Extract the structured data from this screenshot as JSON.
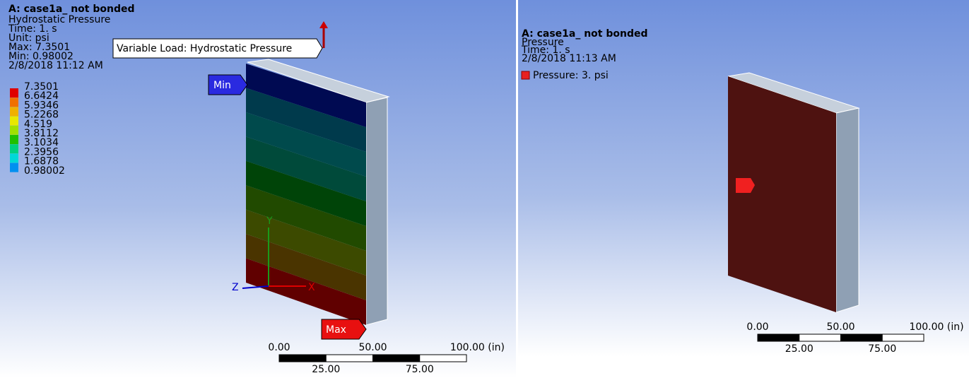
{
  "left_view": {
    "title": "A: case1a_ not bonded",
    "subtitle": "Hydrostatic Pressure",
    "info": [
      "Time: 1. s",
      "Unit: psi",
      "Max: 7.3501",
      "Min: 0.98002",
      "2/8/2018 11:12 AM"
    ],
    "legend": [
      "7.3501",
      "6.6424",
      "5.9346",
      "5.2268",
      "4.519",
      "3.8112",
      "3.1034",
      "2.3956",
      "1.6878",
      "0.98002"
    ],
    "callout": "Variable Load: Hydrostatic Pressure",
    "min_tag": "Min",
    "max_tag": "Max",
    "axes": {
      "y": "Y",
      "z": "Z",
      "x": "X"
    },
    "scale": {
      "top": [
        "0.00",
        "50.00",
        "100.00 (in)"
      ],
      "bottom": [
        "25.00",
        "75.00"
      ]
    }
  },
  "right_view": {
    "title": "A: case1a_ not bonded",
    "subtitle": "Pressure",
    "info": [
      "Time: 1. s",
      "2/8/2018 11:13 AM"
    ],
    "legend": "Pressure: 3. psi",
    "scale": {
      "top": [
        "0.00",
        "50.00",
        "100.00 (in)"
      ],
      "bottom": [
        "25.00",
        "75.00"
      ]
    }
  }
}
